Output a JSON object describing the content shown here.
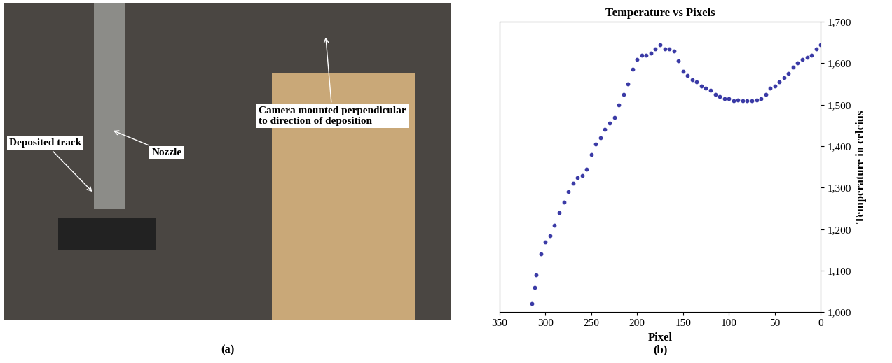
{
  "photo": {
    "annotations": [
      "Deposited track",
      "Nozzle",
      "Camera mounted perpendicular\nto direction of deposition"
    ],
    "label": "(a)"
  },
  "chart_data": {
    "type": "scatter",
    "title": "Temperature vs Pixels",
    "x_label": "Pixel",
    "y_label": "Temperature in celcius",
    "annotations": [
      "(b)"
    ],
    "color": "#3b3ba6",
    "marker": "o",
    "x": [
      315,
      312,
      310,
      305,
      300,
      295,
      290,
      285,
      280,
      275,
      270,
      265,
      260,
      255,
      250,
      245,
      240,
      235,
      230,
      225,
      220,
      215,
      210,
      205,
      200,
      195,
      190,
      185,
      180,
      175,
      170,
      165,
      160,
      155,
      150,
      145,
      140,
      135,
      130,
      125,
      120,
      115,
      110,
      105,
      100,
      95,
      90,
      85,
      80,
      75,
      70,
      65,
      60,
      55,
      50,
      45,
      40,
      35,
      30,
      25,
      20,
      15,
      10,
      5,
      0
    ],
    "values": [
      1020,
      1060,
      1090,
      1140,
      1170,
      1185,
      1210,
      1240,
      1265,
      1290,
      1310,
      1325,
      1330,
      1345,
      1380,
      1405,
      1420,
      1440,
      1455,
      1470,
      1500,
      1525,
      1550,
      1585,
      1610,
      1620,
      1620,
      1625,
      1635,
      1645,
      1635,
      1635,
      1630,
      1605,
      1580,
      1570,
      1560,
      1555,
      1545,
      1540,
      1535,
      1525,
      1520,
      1515,
      1515,
      1510,
      1512,
      1510,
      1510,
      1510,
      1512,
      1515,
      1525,
      1540,
      1545,
      1555,
      1565,
      1575,
      1590,
      1600,
      1610,
      1615,
      1620,
      1635,
      1645
    ],
    "xlim": [
      350,
      0
    ],
    "xticks": [
      350,
      300,
      250,
      200,
      150,
      100,
      50,
      0
    ],
    "ylim": [
      1000,
      1700
    ],
    "yticks": [
      {
        "value": 1000,
        "label": "1,000"
      },
      {
        "value": 1100,
        "label": "1,100"
      },
      {
        "value": 1200,
        "label": "1,200"
      },
      {
        "value": 1300,
        "label": "1,300"
      },
      {
        "value": 1400,
        "label": "1,400"
      },
      {
        "value": 1500,
        "label": "1,500"
      },
      {
        "value": 1600,
        "label": "1,600"
      },
      {
        "value": 1700,
        "label": "1,700"
      }
    ],
    "grid": false
  }
}
